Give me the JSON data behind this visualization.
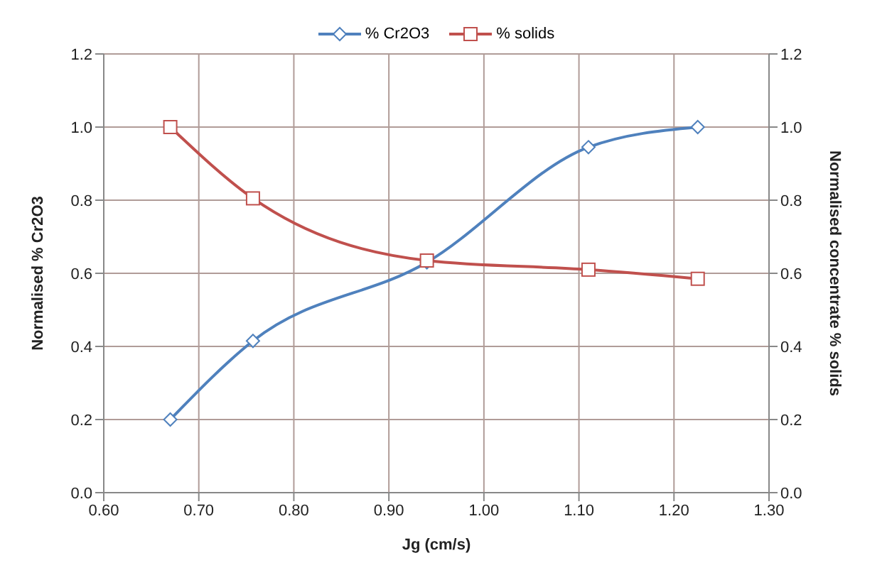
{
  "chart_data": {
    "type": "line",
    "xlabel": "Jg (cm/s)",
    "ylabel": "Normalised % Cr2O3",
    "y2label": "Normalised concentrate % solids",
    "x": [
      0.67,
      0.757,
      0.94,
      1.11,
      1.225
    ],
    "series": [
      {
        "name": "% Cr2O3",
        "color": "#4f81bd",
        "marker": "diamond",
        "values": [
          0.2,
          0.415,
          0.63,
          0.945,
          1.0
        ]
      },
      {
        "name": "% solids",
        "color": "#c0504d",
        "marker": "square",
        "axis": "y2",
        "values": [
          1.0,
          0.805,
          0.635,
          0.61,
          0.585
        ]
      }
    ],
    "xlim": [
      0.6,
      1.3
    ],
    "xticks": [
      {
        "value": 0.6,
        "label": "0.60"
      },
      {
        "value": 0.7,
        "label": "0.70"
      },
      {
        "value": 0.8,
        "label": "0.80"
      },
      {
        "value": 0.9,
        "label": "0.90"
      },
      {
        "value": 1.0,
        "label": "1.00"
      },
      {
        "value": 1.1,
        "label": "1.10"
      },
      {
        "value": 1.2,
        "label": "1.20"
      },
      {
        "value": 1.3,
        "label": "1.30"
      }
    ],
    "ylim": [
      0,
      1.2
    ],
    "yticks": [
      {
        "value": 0,
        "label": "0.0"
      },
      {
        "value": 0.2,
        "label": "0.2"
      },
      {
        "value": 0.4,
        "label": "0.4"
      },
      {
        "value": 0.6,
        "label": "0.6"
      },
      {
        "value": 0.8,
        "label": "0.8"
      },
      {
        "value": 1.0,
        "label": "1.0"
      },
      {
        "value": 1.2,
        "label": "1.2"
      }
    ],
    "y2lim": [
      0,
      1.2
    ],
    "y2ticks": [
      {
        "value": 0,
        "label": "0.0"
      },
      {
        "value": 0.2,
        "label": "0.2"
      },
      {
        "value": 0.4,
        "label": "0.4"
      },
      {
        "value": 0.6,
        "label": "0.6"
      },
      {
        "value": 0.8,
        "label": "0.8"
      },
      {
        "value": 1.0,
        "label": "1.0"
      },
      {
        "value": 1.2,
        "label": "1.2"
      }
    ],
    "grid": true,
    "legend": "top",
    "line_style": "solid"
  }
}
